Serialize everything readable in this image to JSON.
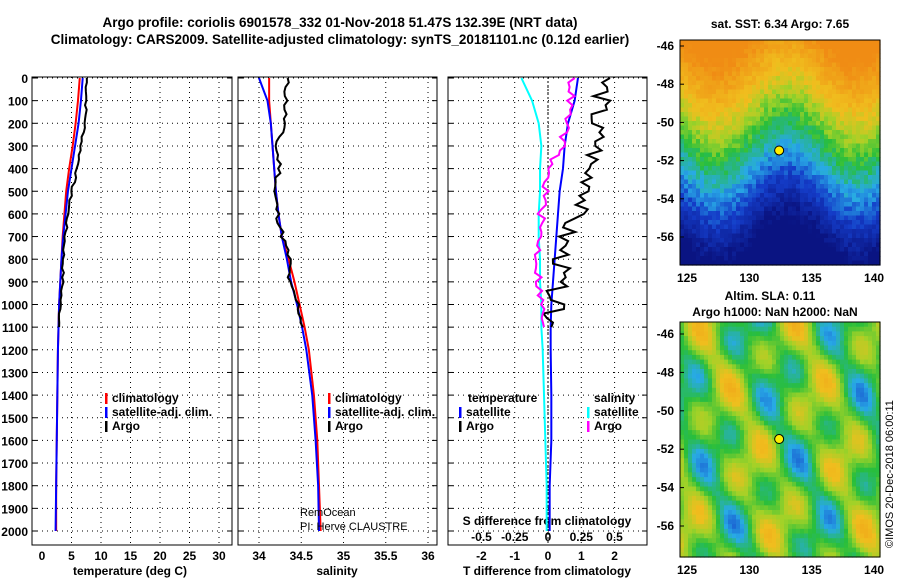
{
  "title_line1": "Argo profile: coriolis 6901578_332 01-Nov-2018 51.47S 132.39E (NRT data)",
  "title_line2": "Climatology: CARS2009. Satellite-adjusted climatology: synTS_20181101.nc (0.12d earlier)",
  "colors": {
    "climatology": "#ff0000",
    "satellite": "#0000ff",
    "argo": "#000000",
    "s_satellite": "#00ffff",
    "s_argo": "#ff00ff"
  },
  "chart_data": [
    {
      "type": "line",
      "name": "temperature",
      "xlabel": "temperature (deg C)",
      "ylabel": "",
      "xlim": [
        -1,
        31
      ],
      "ylim": [
        2060,
        0
      ],
      "xticks": [
        "0",
        "5",
        "10",
        "15",
        "20",
        "25",
        "30"
      ],
      "yticks": [
        "0",
        "100",
        "200",
        "300",
        "400",
        "500",
        "600",
        "700",
        "800",
        "900",
        "1000",
        "1100",
        "1200",
        "1300",
        "1400",
        "1500",
        "1600",
        "1700",
        "1800",
        "1900",
        "2000"
      ],
      "depth": [
        0,
        100,
        200,
        300,
        400,
        500,
        600,
        700,
        800,
        900,
        1000,
        1100,
        1200,
        1400,
        1600,
        1800,
        2000
      ],
      "series": [
        {
          "name": "climatology",
          "values": [
            6.4,
            6.1,
            5.7,
            5.2,
            4.6,
            4.1,
            3.8,
            3.5,
            3.3,
            3.1,
            2.9,
            2.8,
            2.7,
            2.6,
            2.5,
            2.4,
            2.4
          ]
        },
        {
          "name": "satellite-adj. clim.",
          "values": [
            6.9,
            6.6,
            6.2,
            5.6,
            5.0,
            4.4,
            4.0,
            3.6,
            3.3,
            3.1,
            2.9,
            2.8,
            2.7,
            2.6,
            2.5,
            2.4,
            2.3
          ]
        },
        {
          "name": "Argo",
          "values": [
            7.6,
            7.5,
            7.3,
            6.6,
            6.0,
            5.0,
            4.4,
            3.9,
            3.6,
            3.5,
            3.1,
            2.9
          ]
        }
      ],
      "legend": [
        "climatology",
        "satellite-adj. clim.",
        "Argo"
      ]
    },
    {
      "type": "line",
      "name": "salinity",
      "xlabel": "salinity",
      "xlim": [
        33.85,
        36.1
      ],
      "ylim": [
        2060,
        0
      ],
      "xticks": [
        "34",
        "34.5",
        "35",
        "35.5",
        "36"
      ],
      "depth": [
        0,
        100,
        200,
        300,
        400,
        500,
        600,
        700,
        800,
        900,
        1000,
        1100,
        1200,
        1400,
        1600,
        1800,
        2000
      ],
      "series": [
        {
          "name": "climatology",
          "values": [
            34.12,
            34.12,
            34.14,
            34.16,
            34.18,
            34.2,
            34.23,
            34.27,
            34.35,
            34.42,
            34.48,
            34.54,
            34.59,
            34.65,
            34.69,
            34.71,
            34.73
          ]
        },
        {
          "name": "satellite-adj. clim.",
          "values": [
            34.0,
            34.1,
            34.14,
            34.16,
            34.18,
            34.2,
            34.23,
            34.27,
            34.33,
            34.38,
            34.45,
            34.51,
            34.56,
            34.63,
            34.67,
            34.7,
            34.71
          ]
        },
        {
          "name": "Argo",
          "values": [
            34.33,
            34.32,
            34.3,
            34.2,
            34.25,
            34.18,
            34.22,
            34.28,
            34.36,
            34.35,
            34.46,
            34.52
          ]
        }
      ],
      "legend": [
        "climatology",
        "satellite-adj. clim.",
        "Argo"
      ],
      "annotations": [
        "RemOcean",
        "PI: Herve CLAUSTRE"
      ]
    },
    {
      "type": "line",
      "name": "difference",
      "xlabel": "T difference from climatology",
      "x2label": "S difference from climatology",
      "xlim": [
        -2.9,
        2.9
      ],
      "ylim": [
        2060,
        0
      ],
      "xticks": [
        "-2",
        "-1",
        "0",
        "1",
        "2"
      ],
      "x2ticks": [
        "-0.5",
        "-0.25",
        "0",
        "0.25",
        "0.5"
      ],
      "depth": [
        0,
        100,
        200,
        300,
        400,
        500,
        600,
        700,
        800,
        900,
        1000,
        1100,
        1200,
        1400,
        1600,
        1800,
        2000
      ],
      "series": [
        {
          "name": "T satellite",
          "values": [
            0.9,
            0.8,
            0.6,
            0.5,
            0.45,
            0.35,
            0.3,
            0.25,
            0.2,
            0.15,
            0.1,
            0.08,
            0.08,
            0.1,
            0.1,
            0.05,
            0.05
          ]
        },
        {
          "name": "T Argo",
          "values": [
            1.7,
            1.6,
            1.4,
            1.5,
            1.2,
            1.3,
            0.8,
            0.5,
            0.4,
            0.3,
            0.2,
            0.1
          ]
        },
        {
          "name": "S satellite",
          "values": [
            -0.2,
            -0.12,
            -0.07,
            -0.05,
            -0.06,
            -0.06,
            -0.07,
            -0.07,
            -0.06,
            -0.06,
            -0.05,
            -0.05,
            -0.04,
            -0.03,
            -0.02,
            -0.01,
            -0.01
          ]
        },
        {
          "name": "S Argo",
          "values": [
            0.18,
            0.17,
            0.14,
            0.1,
            0.0,
            -0.02,
            -0.05,
            -0.06,
            -0.08,
            -0.07,
            -0.05,
            -0.03
          ]
        }
      ],
      "legend_temperature": {
        "title": "temperature",
        "items": [
          "satellite",
          "Argo"
        ]
      },
      "legend_salinity": {
        "title": "salinity",
        "items": [
          "satellite",
          "Argo"
        ]
      }
    }
  ],
  "map_sst": {
    "title": "sat. SST: 6.34 Argo: 7.65",
    "xticks": [
      "125",
      "130",
      "135",
      "140"
    ],
    "yticks": [
      "-46",
      "-48",
      "-50",
      "-52",
      "-54",
      "-56"
    ]
  },
  "map_sla": {
    "title1": "Altim. SLA: 0.11",
    "title2": "Argo h1000: NaN h2000: NaN",
    "xticks": [
      "125",
      "130",
      "135",
      "140"
    ],
    "yticks": [
      "-46",
      "-48",
      "-50",
      "-52",
      "-54",
      "-56"
    ]
  },
  "watermark": "©IMOS 20-Dec-2018 06:00:11"
}
